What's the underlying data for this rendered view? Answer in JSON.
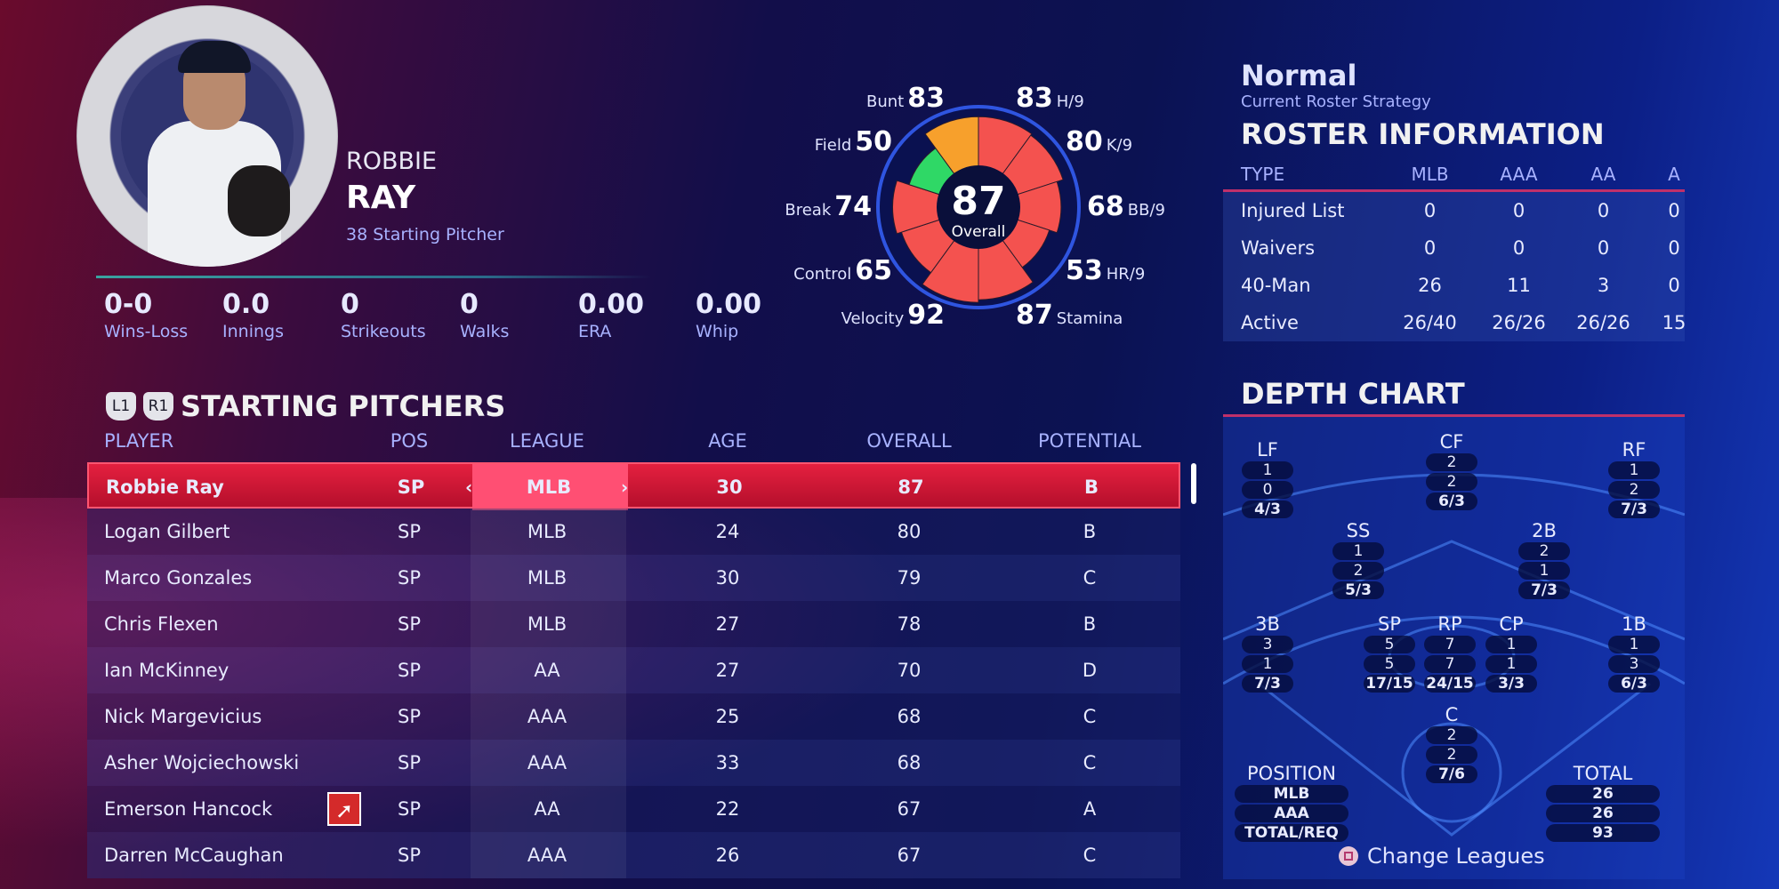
{
  "player": {
    "first_name": "ROBBIE",
    "last_name": "RAY",
    "number_role": "38  Starting Pitcher",
    "stats": [
      {
        "value": "0-0",
        "label": "Wins-Loss"
      },
      {
        "value": "0.0",
        "label": "Innings"
      },
      {
        "value": "0",
        "label": "Strikeouts"
      },
      {
        "value": "0",
        "label": "Walks"
      },
      {
        "value": "0.00",
        "label": "ERA"
      },
      {
        "value": "0.00",
        "label": "Whip"
      }
    ]
  },
  "chart_data": {
    "type": "radar",
    "overall": "87",
    "overall_label": "Overall",
    "attributes": [
      {
        "name": "H/9",
        "value": 83,
        "color": "#f4524f"
      },
      {
        "name": "K/9",
        "value": 80,
        "color": "#f4524f"
      },
      {
        "name": "BB/9",
        "value": 68,
        "color": "#f4524f"
      },
      {
        "name": "HR/9",
        "value": 53,
        "color": "#f4524f"
      },
      {
        "name": "Stamina",
        "value": 87,
        "color": "#f4524f"
      },
      {
        "name": "Velocity",
        "value": 92,
        "color": "#f4524f"
      },
      {
        "name": "Control",
        "value": 65,
        "color": "#f4524f"
      },
      {
        "name": "Break",
        "value": 74,
        "color": "#f4524f"
      },
      {
        "name": "Field",
        "value": 50,
        "color": "#2fd866"
      },
      {
        "name": "Bunt",
        "value": 83,
        "color": "#f7a02c"
      }
    ]
  },
  "roster": {
    "strategy": "Normal",
    "strategy_label": "Current Roster Strategy",
    "title": "ROSTER INFORMATION",
    "headers": [
      "TYPE",
      "MLB",
      "AAA",
      "AA",
      "A"
    ],
    "rows": [
      [
        "Injured List",
        "0",
        "0",
        "0",
        "0"
      ],
      [
        "Waivers",
        "0",
        "0",
        "0",
        "0"
      ],
      [
        "40-Man",
        "26",
        "11",
        "3",
        "0"
      ],
      [
        "Active",
        "26/40",
        "26/26",
        "26/26",
        "15"
      ]
    ]
  },
  "list": {
    "l1": "L1",
    "r1": "R1",
    "title": "STARTING PITCHERS",
    "headers": {
      "player": "PLAYER",
      "pos": "POS",
      "league": "LEAGUE",
      "age": "AGE",
      "overall": "OVERALL",
      "potential": "POTENTIAL"
    },
    "rows": [
      {
        "name": "Robbie Ray",
        "pos": "SP",
        "league": "MLB",
        "age": "30",
        "overall": "87",
        "potential": "B"
      },
      {
        "name": "Logan Gilbert",
        "pos": "SP",
        "league": "MLB",
        "age": "24",
        "overall": "80",
        "potential": "B"
      },
      {
        "name": "Marco Gonzales",
        "pos": "SP",
        "league": "MLB",
        "age": "30",
        "overall": "79",
        "potential": "C"
      },
      {
        "name": "Chris Flexen",
        "pos": "SP",
        "league": "MLB",
        "age": "27",
        "overall": "78",
        "potential": "B"
      },
      {
        "name": "Ian McKinney",
        "pos": "SP",
        "league": "AA",
        "age": "27",
        "overall": "70",
        "potential": "D"
      },
      {
        "name": "Nick Margevicius",
        "pos": "SP",
        "league": "AAA",
        "age": "25",
        "overall": "68",
        "potential": "C"
      },
      {
        "name": "Asher Wojciechowski",
        "pos": "SP",
        "league": "AAA",
        "age": "33",
        "overall": "68",
        "potential": "C"
      },
      {
        "name": "Emerson Hancock",
        "pos": "SP",
        "league": "AA",
        "age": "22",
        "overall": "67",
        "potential": "A"
      },
      {
        "name": "Darren McCaughan",
        "pos": "SP",
        "league": "AAA",
        "age": "26",
        "overall": "67",
        "potential": "C"
      }
    ],
    "arrow_left": "‹",
    "arrow_right": "›"
  },
  "depth": {
    "title": "DEPTH CHART",
    "positions": {
      "LF": [
        "1",
        "0",
        "4/3"
      ],
      "CF": [
        "2",
        "2",
        "6/3"
      ],
      "RF": [
        "1",
        "2",
        "7/3"
      ],
      "SS": [
        "1",
        "2",
        "5/3"
      ],
      "2B": [
        "2",
        "1",
        "7/3"
      ],
      "3B": [
        "3",
        "1",
        "7/3"
      ],
      "SP": [
        "5",
        "5",
        "17/15"
      ],
      "RP": [
        "7",
        "7",
        "24/15"
      ],
      "CP": [
        "1",
        "1",
        "3/3"
      ],
      "1B": [
        "1",
        "3",
        "6/3"
      ],
      "C": [
        "2",
        "2",
        "7/6"
      ]
    },
    "position_label": "POSITION",
    "position_rows": [
      "MLB",
      "AAA",
      "TOTAL/REQ"
    ],
    "total_label": "TOTAL",
    "total_rows": [
      "26",
      "26",
      "93"
    ],
    "change_leagues": "Change Leagues"
  }
}
